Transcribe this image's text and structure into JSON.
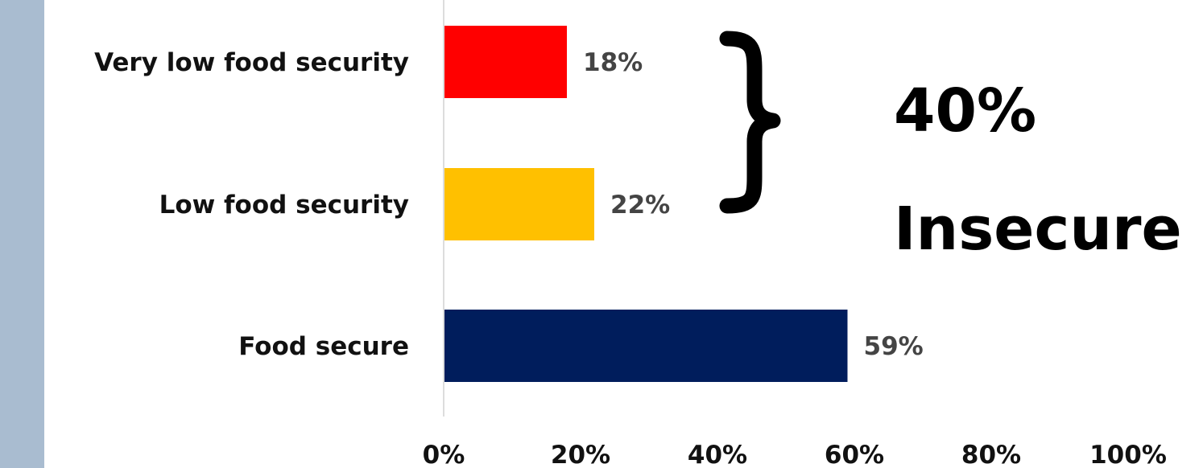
{
  "chart_data": {
    "type": "bar",
    "orientation": "horizontal",
    "categories": [
      "Very low food security",
      "Low food security",
      "Food secure"
    ],
    "values": [
      18,
      22,
      59
    ],
    "value_labels": [
      "18%",
      "22%",
      "59%"
    ],
    "colors": [
      "#ff0000",
      "#ffc000",
      "#001d5c"
    ],
    "xlim": [
      0,
      100
    ],
    "x_ticks": [
      0,
      20,
      40,
      60,
      80,
      100
    ],
    "x_tick_labels": [
      "0%",
      "20%",
      "40%",
      "60%",
      "80%",
      "100%"
    ],
    "grid": false,
    "title": "",
    "xlabel": "",
    "ylabel": "",
    "annotation": {
      "line1": "40%",
      "line2": "Insecure",
      "brackets_categories": [
        "Very low food security",
        "Low food security"
      ]
    }
  }
}
